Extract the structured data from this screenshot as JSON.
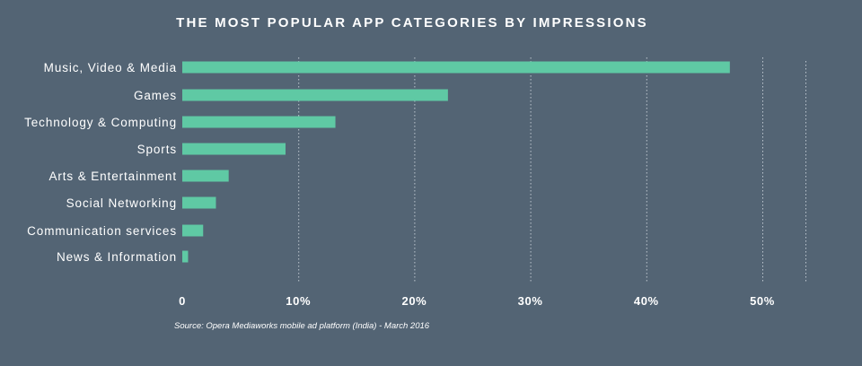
{
  "chart_data": {
    "type": "bar",
    "orientation": "horizontal",
    "title": "THE MOST POPULAR APP CATEGORIES BY IMPRESSIONS",
    "categories": [
      "Music, Video & Media",
      "Games",
      "Technology & Computing",
      "Sports",
      "Arts & Entertainment",
      "Social Networking",
      "Communication services",
      "News & Information"
    ],
    "values": [
      47.2,
      22.9,
      13.2,
      8.9,
      4.0,
      2.9,
      1.8,
      0.5
    ],
    "unit": "%",
    "xlim": [
      0,
      50
    ],
    "ticks": [
      0,
      10,
      20,
      30,
      40,
      50
    ],
    "tick_labels": [
      "0",
      "10%",
      "20%",
      "30%",
      "40%",
      "50%"
    ],
    "xlabel": "",
    "ylabel": "",
    "grid": "vertical dotted",
    "bar_color": "#5fc9a4",
    "background_color": "#536474",
    "source": "Source: Opera Mediaworks mobile ad platform (India) - March 2016"
  }
}
